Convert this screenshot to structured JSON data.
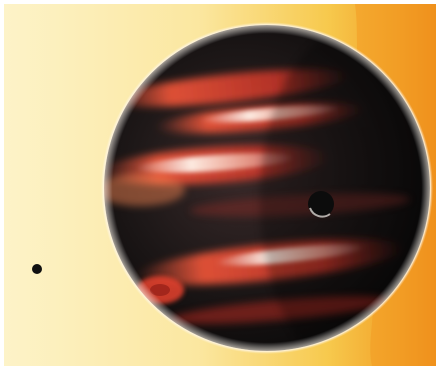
{
  "image": {
    "subject": "exoplanet-transit-artwork",
    "elements": [
      {
        "name": "star-surface",
        "kind": "background"
      },
      {
        "name": "gas-giant",
        "kind": "planet"
      },
      {
        "name": "large-moon",
        "kind": "moon"
      },
      {
        "name": "distant-moon",
        "kind": "moon"
      }
    ],
    "colors": {
      "star_light": "#fbeeb0",
      "star_mid": "#f6c342",
      "star_edge": "#ee8a1a",
      "planet_dark": "#141212",
      "band_red": "#e8432e",
      "band_highlight": "#fff1e6",
      "moon": "#0c0c0c"
    }
  }
}
